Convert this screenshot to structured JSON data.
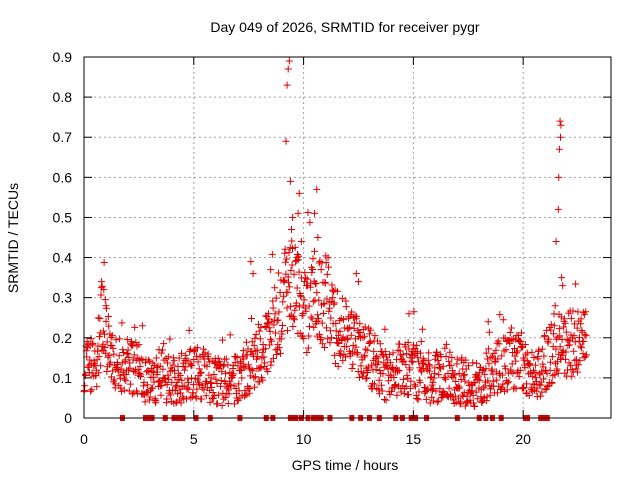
{
  "chart_data": {
    "type": "scatter",
    "title": "Day 049 of 2026, SRMTID for receiver pygr",
    "xlabel": "GPS time / hours",
    "ylabel": "SRMTID / TECUs",
    "xlim": [
      0,
      24
    ],
    "ylim": [
      0,
      0.9
    ],
    "x_ticks": [
      0,
      5,
      10,
      15,
      20
    ],
    "x_tick_labels": [
      "0",
      "5",
      "10",
      "15",
      "20"
    ],
    "y_ticks": [
      0,
      0.1,
      0.2,
      0.3,
      0.4,
      0.5,
      0.6,
      0.7,
      0.8,
      0.9
    ],
    "y_tick_labels": [
      "0",
      "0.1",
      "0.2",
      "0.3",
      "0.4",
      "0.5",
      "0.6",
      "0.7",
      "0.8",
      "0.9"
    ],
    "grid": true,
    "marker": "+",
    "series_color": "#e00000",
    "series": [
      {
        "name": "SRMTID",
        "hourly_profile": [
          {
            "x": 0.0,
            "y": 0.14
          },
          {
            "x": 0.5,
            "y": 0.12
          },
          {
            "x": 0.9,
            "y": 0.26
          },
          {
            "x": 1.2,
            "y": 0.14
          },
          {
            "x": 2.0,
            "y": 0.13
          },
          {
            "x": 2.5,
            "y": 0.12
          },
          {
            "x": 3.0,
            "y": 0.09
          },
          {
            "x": 3.5,
            "y": 0.11
          },
          {
            "x": 4.0,
            "y": 0.09
          },
          {
            "x": 4.5,
            "y": 0.1
          },
          {
            "x": 5.0,
            "y": 0.11
          },
          {
            "x": 5.5,
            "y": 0.11
          },
          {
            "x": 6.0,
            "y": 0.09
          },
          {
            "x": 6.5,
            "y": 0.09
          },
          {
            "x": 7.0,
            "y": 0.1
          },
          {
            "x": 7.5,
            "y": 0.13
          },
          {
            "x": 8.0,
            "y": 0.16
          },
          {
            "x": 8.5,
            "y": 0.2
          },
          {
            "x": 9.0,
            "y": 0.28
          },
          {
            "x": 9.3,
            "y": 0.36
          },
          {
            "x": 9.7,
            "y": 0.3
          },
          {
            "x": 10.0,
            "y": 0.26
          },
          {
            "x": 10.5,
            "y": 0.3
          },
          {
            "x": 11.0,
            "y": 0.29
          },
          {
            "x": 11.5,
            "y": 0.22
          },
          {
            "x": 12.0,
            "y": 0.21
          },
          {
            "x": 12.5,
            "y": 0.18
          },
          {
            "x": 13.0,
            "y": 0.15
          },
          {
            "x": 13.5,
            "y": 0.12
          },
          {
            "x": 14.0,
            "y": 0.1
          },
          {
            "x": 14.5,
            "y": 0.13
          },
          {
            "x": 15.0,
            "y": 0.12
          },
          {
            "x": 15.5,
            "y": 0.1
          },
          {
            "x": 16.0,
            "y": 0.1
          },
          {
            "x": 16.5,
            "y": 0.12
          },
          {
            "x": 17.0,
            "y": 0.09
          },
          {
            "x": 17.5,
            "y": 0.09
          },
          {
            "x": 18.0,
            "y": 0.07
          },
          {
            "x": 18.5,
            "y": 0.12
          },
          {
            "x": 19.0,
            "y": 0.13
          },
          {
            "x": 19.5,
            "y": 0.15
          },
          {
            "x": 20.0,
            "y": 0.14
          },
          {
            "x": 20.5,
            "y": 0.1
          },
          {
            "x": 21.0,
            "y": 0.14
          },
          {
            "x": 21.5,
            "y": 0.18
          },
          {
            "x": 22.0,
            "y": 0.19
          },
          {
            "x": 22.5,
            "y": 0.18
          },
          {
            "x": 22.9,
            "y": 0.18
          }
        ],
        "highlighted_points": [
          {
            "x": 0.8,
            "y": 0.34
          },
          {
            "x": 0.9,
            "y": 0.32
          },
          {
            "x": 1.0,
            "y": 0.28
          },
          {
            "x": 7.6,
            "y": 0.39
          },
          {
            "x": 7.7,
            "y": 0.36
          },
          {
            "x": 8.5,
            "y": 0.37
          },
          {
            "x": 9.2,
            "y": 0.69
          },
          {
            "x": 9.25,
            "y": 0.83
          },
          {
            "x": 9.3,
            "y": 0.87
          },
          {
            "x": 9.35,
            "y": 0.89
          },
          {
            "x": 9.4,
            "y": 0.59
          },
          {
            "x": 9.45,
            "y": 0.47
          },
          {
            "x": 9.5,
            "y": 0.5
          },
          {
            "x": 9.7,
            "y": 0.4
          },
          {
            "x": 9.75,
            "y": 0.51
          },
          {
            "x": 9.8,
            "y": 0.56
          },
          {
            "x": 9.9,
            "y": 0.44
          },
          {
            "x": 10.5,
            "y": 0.51
          },
          {
            "x": 10.6,
            "y": 0.57
          },
          {
            "x": 10.65,
            "y": 0.45
          },
          {
            "x": 10.8,
            "y": 0.37
          },
          {
            "x": 12.4,
            "y": 0.36
          },
          {
            "x": 12.5,
            "y": 0.34
          },
          {
            "x": 14.8,
            "y": 0.26
          },
          {
            "x": 21.5,
            "y": 0.44
          },
          {
            "x": 21.6,
            "y": 0.52
          },
          {
            "x": 21.62,
            "y": 0.6
          },
          {
            "x": 21.65,
            "y": 0.67
          },
          {
            "x": 21.7,
            "y": 0.7
          },
          {
            "x": 21.72,
            "y": 0.73
          },
          {
            "x": 21.68,
            "y": 0.74
          },
          {
            "x": 21.75,
            "y": 0.35
          },
          {
            "x": 21.8,
            "y": 0.33
          }
        ],
        "zero_points": [
          1.75,
          2.8,
          2.9,
          3.0,
          3.1,
          3.7,
          4.1,
          4.2,
          4.4,
          4.5,
          5.1,
          5.75,
          7.1,
          8.3,
          8.6,
          9.4,
          9.5,
          9.65,
          9.9,
          10.2,
          10.45,
          10.6,
          10.8,
          11.2,
          12.2,
          12.6,
          13.0,
          13.45,
          14.2,
          14.5,
          14.9,
          15.1,
          15.6,
          17.0,
          18.0,
          18.3,
          18.6,
          19.0,
          20.1,
          20.2,
          20.8,
          21.0,
          21.1
        ]
      }
    ]
  }
}
